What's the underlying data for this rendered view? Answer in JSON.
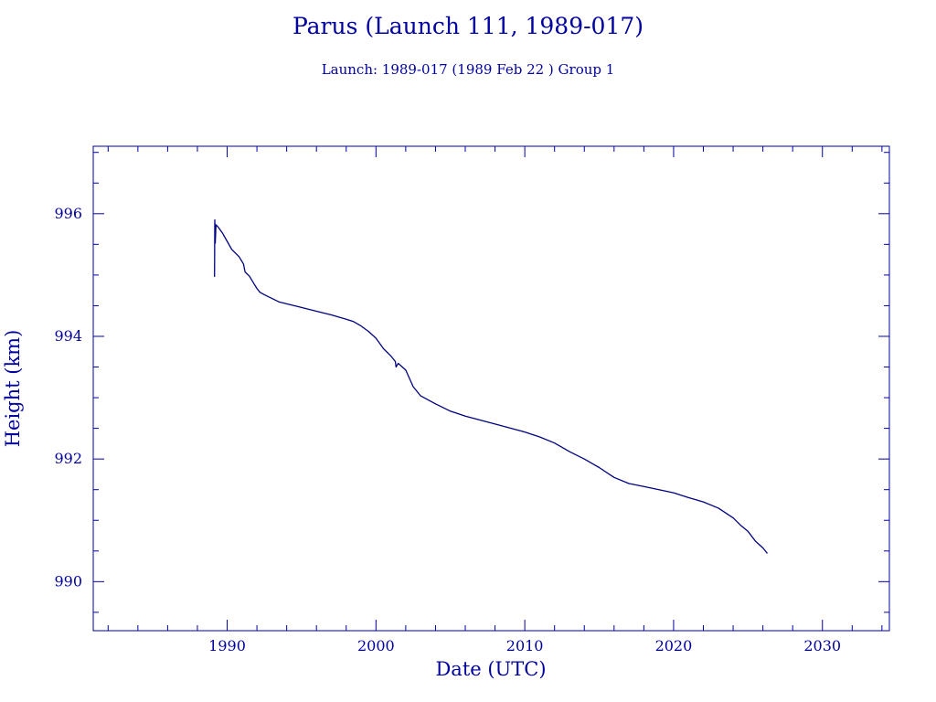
{
  "title": "Parus (Launch 111, 1989-017)",
  "subtitle": "Launch: 1989-017  (1989 Feb 22 )  Group 1",
  "colors": {
    "ink": "#0000a0",
    "series": "#000080",
    "background": "#ffffff"
  },
  "chart_data": {
    "type": "line",
    "title": "Parus (Launch 111, 1989-017)",
    "subtitle": "Launch: 1989-017  (1989 Feb 22 )  Group 1",
    "xlabel": "Date (UTC)",
    "ylabel": "Height (km)",
    "xlim": [
      1981,
      2034.5
    ],
    "ylim": [
      989.2,
      997.1
    ],
    "x_ticks": [
      1990,
      2000,
      2010,
      2020,
      2030
    ],
    "x_tick_labels": [
      "1990",
      "2000",
      "2010",
      "2020",
      "2030"
    ],
    "x_minor_step": 2,
    "y_ticks": [
      990,
      992,
      994,
      996
    ],
    "y_tick_labels": [
      "990",
      "992",
      "994",
      "996"
    ],
    "y_minor_step": 0.5,
    "grid": false,
    "series": [
      {
        "color": "#000080",
        "x": [
          1989.15,
          1989.17,
          1989.2,
          1989.25,
          1989.4,
          1989.7,
          1990.0,
          1990.3,
          1990.8,
          1991.1,
          1991.2,
          1991.5,
          1991.8,
          1992.0,
          1992.2,
          1992.5,
          1993.0,
          1993.5,
          1994.0,
          1995.0,
          1996.0,
          1997.0,
          1998.0,
          1998.5,
          1999.0,
          1999.5,
          2000.0,
          2000.5,
          2001.0,
          2001.3,
          2001.35,
          2001.5,
          2002.0,
          2002.5,
          2003.0,
          2004.0,
          2005.0,
          2006.0,
          2008.0,
          2010.0,
          2011.0,
          2012.0,
          2013.0,
          2014.0,
          2015.0,
          2016.0,
          2017.0,
          2018.0,
          2020.0,
          2021.0,
          2022.0,
          2023.0,
          2024.0,
          2024.5,
          2025.0,
          2025.5,
          2026.0,
          2026.3
        ],
        "y": [
          994.97,
          995.9,
          995.52,
          995.82,
          995.78,
          995.68,
          995.55,
          995.42,
          995.3,
          995.18,
          995.05,
          994.98,
          994.86,
          994.78,
          994.72,
          994.68,
          994.62,
          994.56,
          994.53,
          994.47,
          994.41,
          994.35,
          994.28,
          994.24,
          994.17,
          994.08,
          993.97,
          993.8,
          993.68,
          993.59,
          993.5,
          993.56,
          993.45,
          993.18,
          993.03,
          992.9,
          992.78,
          992.7,
          992.57,
          992.44,
          992.36,
          992.26,
          992.12,
          992.0,
          991.86,
          991.7,
          991.6,
          991.55,
          991.45,
          991.37,
          991.3,
          991.2,
          991.04,
          990.92,
          990.82,
          990.66,
          990.55,
          990.46
        ]
      }
    ]
  }
}
